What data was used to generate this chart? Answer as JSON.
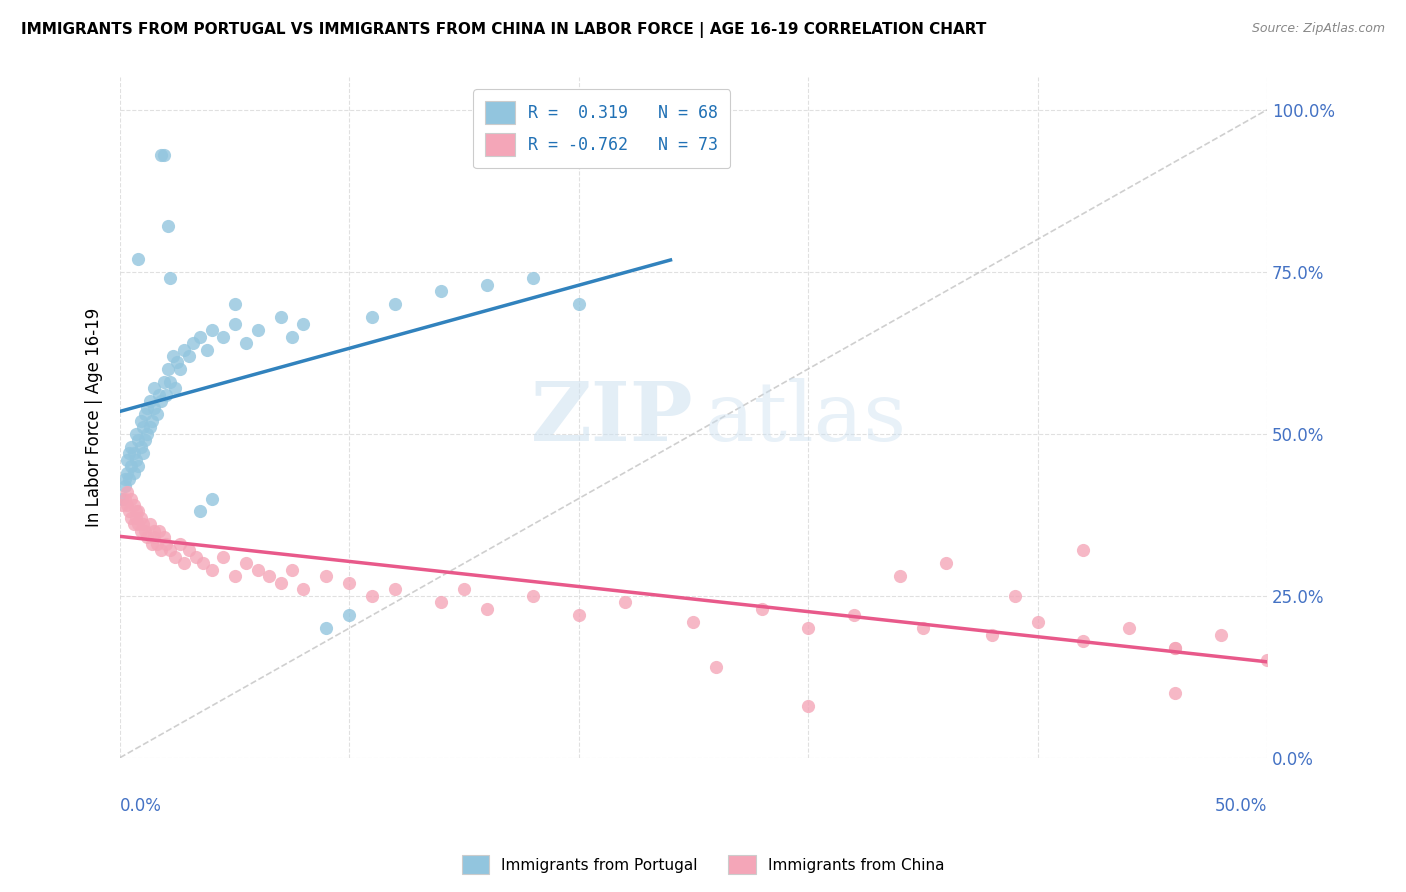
{
  "title": "IMMIGRANTS FROM PORTUGAL VS IMMIGRANTS FROM CHINA IN LABOR FORCE | AGE 16-19 CORRELATION CHART",
  "source": "Source: ZipAtlas.com",
  "ylabel": "In Labor Force | Age 16-19",
  "ylabel_ticks": [
    "0.0%",
    "25.0%",
    "50.0%",
    "75.0%",
    "100.0%"
  ],
  "ylabel_vals": [
    0.0,
    0.25,
    0.5,
    0.75,
    1.0
  ],
  "xlim": [
    0.0,
    0.5
  ],
  "ylim": [
    0.0,
    1.05
  ],
  "blue_color": "#92c5de",
  "pink_color": "#f4a6b8",
  "blue_line_color": "#3182bd",
  "pink_line_color": "#e8598a",
  "diag_line_color": "#bbbbbb",
  "legend_blue_label": "R =  0.319   N = 68",
  "legend_pink_label": "R = -0.762   N = 73",
  "blue_x": [
    0.001,
    0.002,
    0.002,
    0.003,
    0.003,
    0.004,
    0.004,
    0.005,
    0.005,
    0.006,
    0.006,
    0.007,
    0.007,
    0.008,
    0.008,
    0.009,
    0.009,
    0.01,
    0.01,
    0.011,
    0.011,
    0.012,
    0.012,
    0.013,
    0.013,
    0.014,
    0.015,
    0.015,
    0.016,
    0.017,
    0.018,
    0.019,
    0.02,
    0.021,
    0.022,
    0.023,
    0.024,
    0.025,
    0.026,
    0.028,
    0.03,
    0.032,
    0.035,
    0.038,
    0.04,
    0.045,
    0.05,
    0.055,
    0.06,
    0.07,
    0.075,
    0.08,
    0.09,
    0.1,
    0.11,
    0.12,
    0.14,
    0.16,
    0.18,
    0.2,
    0.018,
    0.019,
    0.021,
    0.022,
    0.008,
    0.035,
    0.04,
    0.05
  ],
  "blue_y": [
    0.4,
    0.43,
    0.42,
    0.44,
    0.46,
    0.43,
    0.47,
    0.45,
    0.48,
    0.44,
    0.47,
    0.46,
    0.5,
    0.45,
    0.49,
    0.48,
    0.52,
    0.47,
    0.51,
    0.49,
    0.53,
    0.5,
    0.54,
    0.51,
    0.55,
    0.52,
    0.54,
    0.57,
    0.53,
    0.56,
    0.55,
    0.58,
    0.56,
    0.6,
    0.58,
    0.62,
    0.57,
    0.61,
    0.6,
    0.63,
    0.62,
    0.64,
    0.65,
    0.63,
    0.66,
    0.65,
    0.67,
    0.64,
    0.66,
    0.68,
    0.65,
    0.67,
    0.2,
    0.22,
    0.68,
    0.7,
    0.72,
    0.73,
    0.74,
    0.7,
    0.93,
    0.93,
    0.82,
    0.74,
    0.77,
    0.38,
    0.4,
    0.7
  ],
  "pink_x": [
    0.001,
    0.002,
    0.003,
    0.003,
    0.004,
    0.005,
    0.005,
    0.006,
    0.006,
    0.007,
    0.007,
    0.008,
    0.008,
    0.009,
    0.009,
    0.01,
    0.011,
    0.012,
    0.013,
    0.014,
    0.015,
    0.015,
    0.016,
    0.017,
    0.018,
    0.019,
    0.02,
    0.022,
    0.024,
    0.026,
    0.028,
    0.03,
    0.033,
    0.036,
    0.04,
    0.045,
    0.05,
    0.055,
    0.06,
    0.065,
    0.07,
    0.075,
    0.08,
    0.09,
    0.1,
    0.11,
    0.12,
    0.14,
    0.15,
    0.16,
    0.18,
    0.2,
    0.22,
    0.25,
    0.28,
    0.3,
    0.32,
    0.35,
    0.38,
    0.4,
    0.42,
    0.44,
    0.46,
    0.48,
    0.5,
    0.36,
    0.34,
    0.42,
    0.46,
    0.39,
    0.3,
    0.26,
    0.46
  ],
  "pink_y": [
    0.39,
    0.4,
    0.39,
    0.41,
    0.38,
    0.4,
    0.37,
    0.39,
    0.36,
    0.38,
    0.37,
    0.36,
    0.38,
    0.35,
    0.37,
    0.36,
    0.35,
    0.34,
    0.36,
    0.33,
    0.35,
    0.34,
    0.33,
    0.35,
    0.32,
    0.34,
    0.33,
    0.32,
    0.31,
    0.33,
    0.3,
    0.32,
    0.31,
    0.3,
    0.29,
    0.31,
    0.28,
    0.3,
    0.29,
    0.28,
    0.27,
    0.29,
    0.26,
    0.28,
    0.27,
    0.25,
    0.26,
    0.24,
    0.26,
    0.23,
    0.25,
    0.22,
    0.24,
    0.21,
    0.23,
    0.2,
    0.22,
    0.2,
    0.19,
    0.21,
    0.18,
    0.2,
    0.17,
    0.19,
    0.15,
    0.3,
    0.28,
    0.32,
    0.1,
    0.25,
    0.08,
    0.14,
    0.17
  ]
}
